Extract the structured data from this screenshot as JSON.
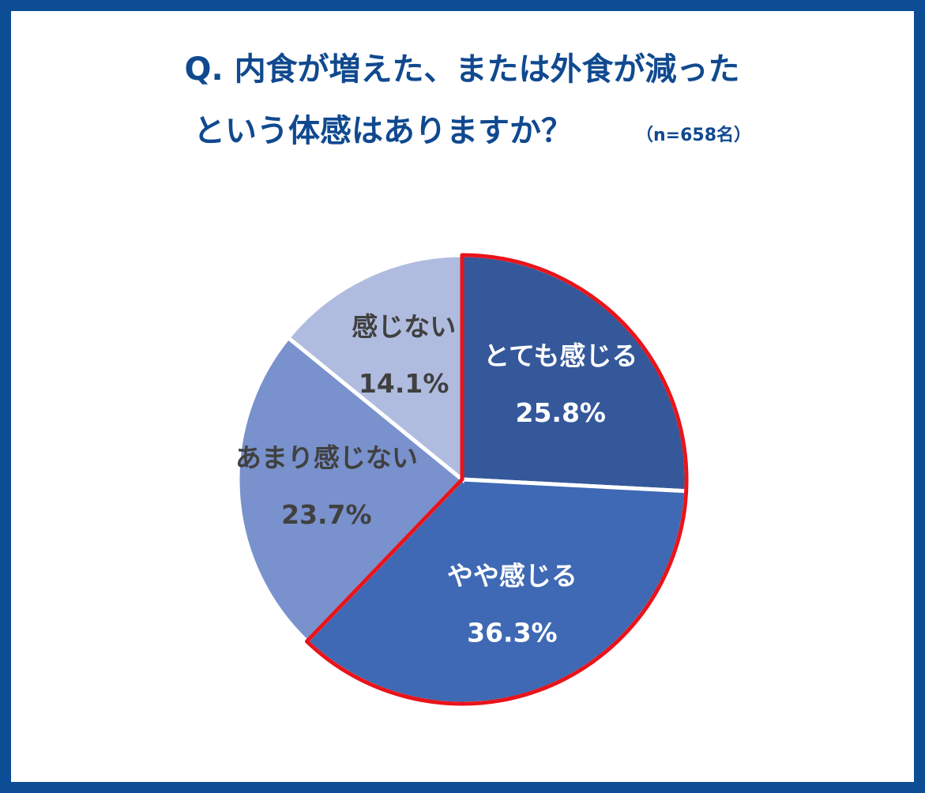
{
  "chart_data": {
    "type": "pie",
    "title": [
      "Q. 内食が増えた、または外食が減った",
      "という体感はありますか？"
    ],
    "subtitle": "（n=658名）",
    "categories": [
      "とても感じる",
      "やや感じる",
      "あまり感じない",
      "感じない"
    ],
    "values": [
      25.8,
      36.3,
      23.7,
      14.1
    ],
    "value_labels": [
      "25.8%",
      "36.3%",
      "23.7%",
      "14.1%"
    ],
    "colors": [
      "#34589a",
      "#3f69b4",
      "#7991cc",
      "#b0bcdf"
    ],
    "label_colors": [
      "#ffffff",
      "#ffffff",
      "#404040",
      "#404040"
    ],
    "highlight_color": "#e8141b"
  }
}
